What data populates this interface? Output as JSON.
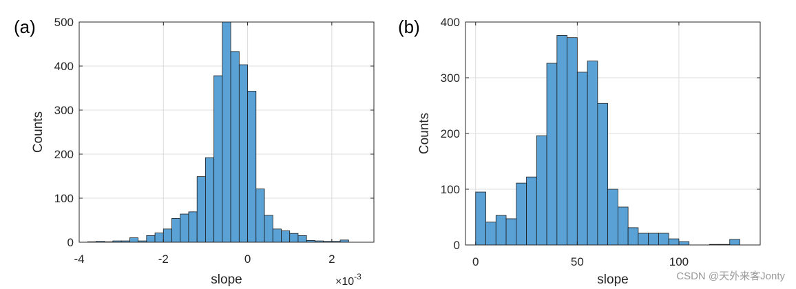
{
  "chart_data": [
    {
      "type": "bar",
      "panel_label": "(a)",
      "title": "",
      "xlabel": "slope",
      "ylabel": "Counts",
      "x_multiplier": "×10",
      "x_exponent": "-3",
      "xlim": [
        -4.0,
        3.0
      ],
      "ylim": [
        0,
        500
      ],
      "xticks": [
        -4,
        -2,
        0,
        2
      ],
      "xtick_labels": [
        "-4",
        "-2",
        "0",
        "2"
      ],
      "yticks": [
        0,
        100,
        200,
        300,
        400,
        500
      ],
      "ytick_labels": [
        "0",
        "100",
        "200",
        "300",
        "400",
        "500"
      ],
      "grid": true,
      "color": "#5aa2d6",
      "bin_width": 0.2,
      "bin_starts": [
        -3.8,
        -3.6,
        -3.4,
        -3.2,
        -3.0,
        -2.8,
        -2.6,
        -2.4,
        -2.2,
        -2.0,
        -1.8,
        -1.6,
        -1.4,
        -1.2,
        -1.0,
        -0.8,
        -0.6,
        -0.4,
        -0.2,
        0.0,
        0.2,
        0.4,
        0.6,
        0.8,
        1.0,
        1.2,
        1.4,
        1.6,
        1.8,
        2.0,
        2.2
      ],
      "values": [
        1,
        2,
        1,
        3,
        3,
        10,
        3,
        15,
        21,
        30,
        54,
        64,
        69,
        149,
        192,
        378,
        500,
        433,
        403,
        343,
        121,
        61,
        30,
        26,
        20,
        15,
        4,
        3,
        2,
        2,
        5
      ]
    },
    {
      "type": "bar",
      "panel_label": "(b)",
      "title": "",
      "xlabel": "slope",
      "ylabel": "Counts",
      "xlim": [
        -5,
        140
      ],
      "ylim": [
        0,
        400
      ],
      "xticks": [
        0,
        50,
        100
      ],
      "xtick_labels": [
        "0",
        "50",
        "100"
      ],
      "yticks": [
        0,
        100,
        200,
        300,
        400
      ],
      "ytick_labels": [
        "0",
        "100",
        "200",
        "300",
        "400"
      ],
      "grid": true,
      "color": "#5aa2d6",
      "bin_width": 5,
      "bin_starts": [
        0,
        5,
        10,
        15,
        20,
        25,
        30,
        35,
        40,
        45,
        50,
        55,
        60,
        65,
        70,
        75,
        80,
        85,
        90,
        95,
        100,
        105,
        110,
        115,
        120,
        125
      ],
      "values": [
        95,
        41,
        53,
        47,
        111,
        122,
        196,
        326,
        376,
        372,
        310,
        330,
        254,
        100,
        68,
        31,
        21,
        21,
        21,
        11,
        6,
        0,
        0,
        1,
        1,
        10
      ]
    }
  ],
  "watermark": "CSDN @天外来客Jonty"
}
